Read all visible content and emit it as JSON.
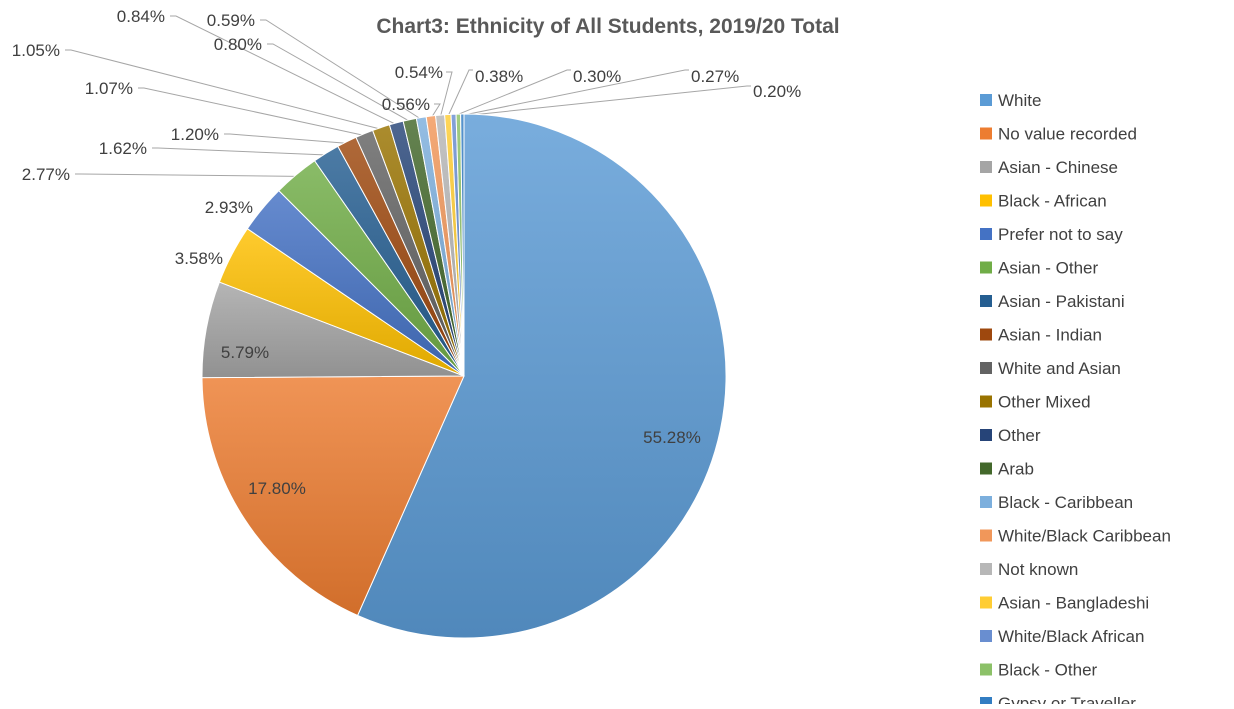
{
  "chart_data": {
    "type": "pie",
    "title": "Chart3: Ethnicity of All Students, 2019/20 Total",
    "start_angle_deg": 0,
    "direction": "clockwise",
    "legend_position": "right",
    "slices": [
      {
        "label": "White",
        "value": 55.28,
        "display": "55.28%",
        "color": "#5B9BD5"
      },
      {
        "label": "No value recorded",
        "value": 17.8,
        "display": "17.80%",
        "color": "#ED7D31"
      },
      {
        "label": "Asian - Chinese",
        "value": 5.79,
        "display": "5.79%",
        "color": "#A5A5A5"
      },
      {
        "label": "Black - African",
        "value": 3.58,
        "display": "3.58%",
        "color": "#FFC000"
      },
      {
        "label": "Prefer not to say",
        "value": 2.93,
        "display": "2.93%",
        "color": "#4472C4"
      },
      {
        "label": "Asian - Other",
        "value": 2.77,
        "display": "2.77%",
        "color": "#70AD47"
      },
      {
        "label": "Asian - Pakistani",
        "value": 1.62,
        "display": "1.62%",
        "color": "#255E91"
      },
      {
        "label": "Asian - Indian",
        "value": 1.2,
        "display": "1.20%",
        "color": "#9E480E"
      },
      {
        "label": "White and Asian",
        "value": 1.07,
        "display": "1.07%",
        "color": "#636363"
      },
      {
        "label": "Other Mixed",
        "value": 1.05,
        "display": "1.05%",
        "color": "#997300"
      },
      {
        "label": "Other",
        "value": 0.84,
        "display": "0.84%",
        "color": "#264478"
      },
      {
        "label": "Arab",
        "value": 0.8,
        "display": "0.80%",
        "color": "#43682B"
      },
      {
        "label": "Black - Caribbean",
        "value": 0.59,
        "display": "0.59%",
        "color": "#7CAFDD"
      },
      {
        "label": "White/Black Caribbean",
        "value": 0.56,
        "display": "0.56%",
        "color": "#F1975A"
      },
      {
        "label": "Not known",
        "value": 0.54,
        "display": "0.54%",
        "color": "#B7B7B7"
      },
      {
        "label": "Asian - Bangladeshi",
        "value": 0.38,
        "display": "0.38%",
        "color": "#FFCD33"
      },
      {
        "label": "White/Black African",
        "value": 0.3,
        "display": "0.30%",
        "color": "#698ED0"
      },
      {
        "label": "Black - Other",
        "value": 0.27,
        "display": "0.27%",
        "color": "#8CC168"
      },
      {
        "label": "Gypsy or Traveller",
        "value": 0.2,
        "display": "0.20%",
        "color": "#327DC2"
      }
    ]
  }
}
